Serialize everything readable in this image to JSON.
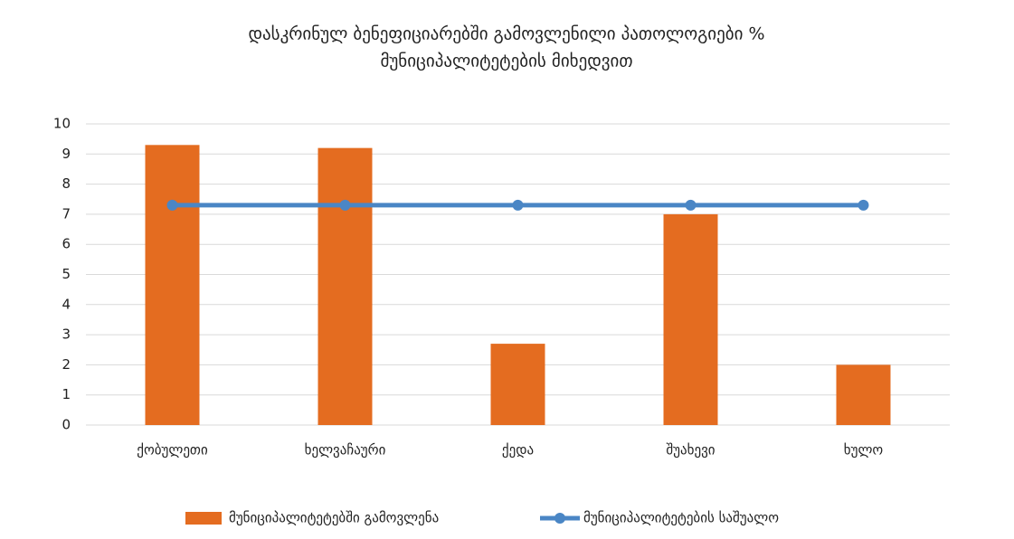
{
  "chart_data": {
    "type": "bar",
    "title": [
      "დასკრინულ ბენეფიციარებში გამოვლენილი პათოლოგიები %",
      "მუნიციპალიტეტების მიხედვით"
    ],
    "categories": [
      "ქობულეთი",
      "ხელვაჩაური",
      "ქედა",
      "შუახევი",
      "ხულო"
    ],
    "series": [
      {
        "name": "მუნიციპალიტეტებში გამოვლენა",
        "type": "bar",
        "color": "#e46c20",
        "values": [
          9.3,
          9.2,
          2.7,
          7.0,
          2.0
        ]
      },
      {
        "name": "მუნიციპალიტეტების საშუალო",
        "type": "line",
        "color": "#4a86c5",
        "values": [
          7.3,
          7.3,
          7.3,
          7.3,
          7.3
        ]
      }
    ],
    "ylim": [
      0,
      10
    ],
    "yticks": [
      0,
      1,
      2,
      3,
      4,
      5,
      6,
      7,
      8,
      9,
      10
    ],
    "grid": true,
    "legend": "bottom"
  }
}
